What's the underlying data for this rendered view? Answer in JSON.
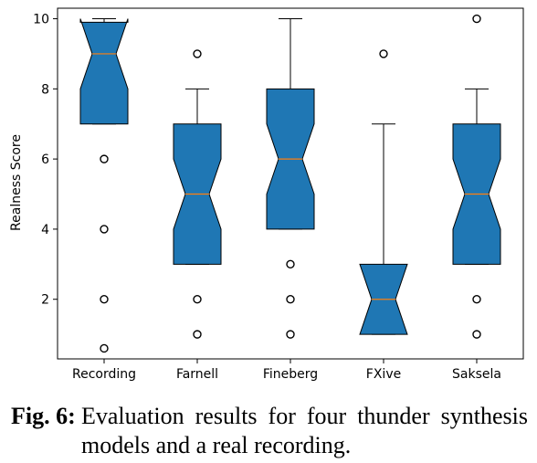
{
  "chart_data": {
    "type": "boxplot",
    "notched": true,
    "ylabel": "Realness Score",
    "ylim": [
      0.3,
      10.3
    ],
    "yticks": [
      2,
      4,
      6,
      8,
      10
    ],
    "grid": false,
    "box_fill": "#1f77b4",
    "median_color": "#ff7f0e",
    "categories": [
      "Recording",
      "Farnell",
      "Fineberg",
      "FXive",
      "Saksela"
    ],
    "boxes": [
      {
        "label": "Recording",
        "q1": 7,
        "median": 9,
        "q3": 9.9,
        "notch_low": 8,
        "notch_high": 10,
        "whisker_low": 7,
        "whisker_high": 10,
        "outliers": [
          6,
          4,
          2,
          0.6
        ]
      },
      {
        "label": "Farnell",
        "q1": 3,
        "median": 5,
        "q3": 7,
        "notch_low": 4,
        "notch_high": 6,
        "whisker_low": 3,
        "whisker_high": 8,
        "outliers": [
          9,
          2,
          1
        ]
      },
      {
        "label": "Fineberg",
        "q1": 4,
        "median": 6,
        "q3": 8,
        "notch_low": 5,
        "notch_high": 7,
        "whisker_low": 4,
        "whisker_high": 10,
        "outliers": [
          3,
          2,
          1
        ]
      },
      {
        "label": "FXive",
        "q1": 1,
        "median": 2,
        "q3": 3,
        "notch_low": 1,
        "notch_high": 3,
        "whisker_low": 1,
        "whisker_high": 7,
        "outliers": [
          9
        ]
      },
      {
        "label": "Saksela",
        "q1": 3,
        "median": 5,
        "q3": 7,
        "notch_low": 4,
        "notch_high": 6,
        "whisker_low": 3,
        "whisker_high": 8,
        "outliers": [
          10,
          2,
          1
        ]
      }
    ]
  },
  "caption": {
    "label": "Fig. 6:",
    "text": "Evaluation results for four thunder synthesis models and a real recording."
  }
}
